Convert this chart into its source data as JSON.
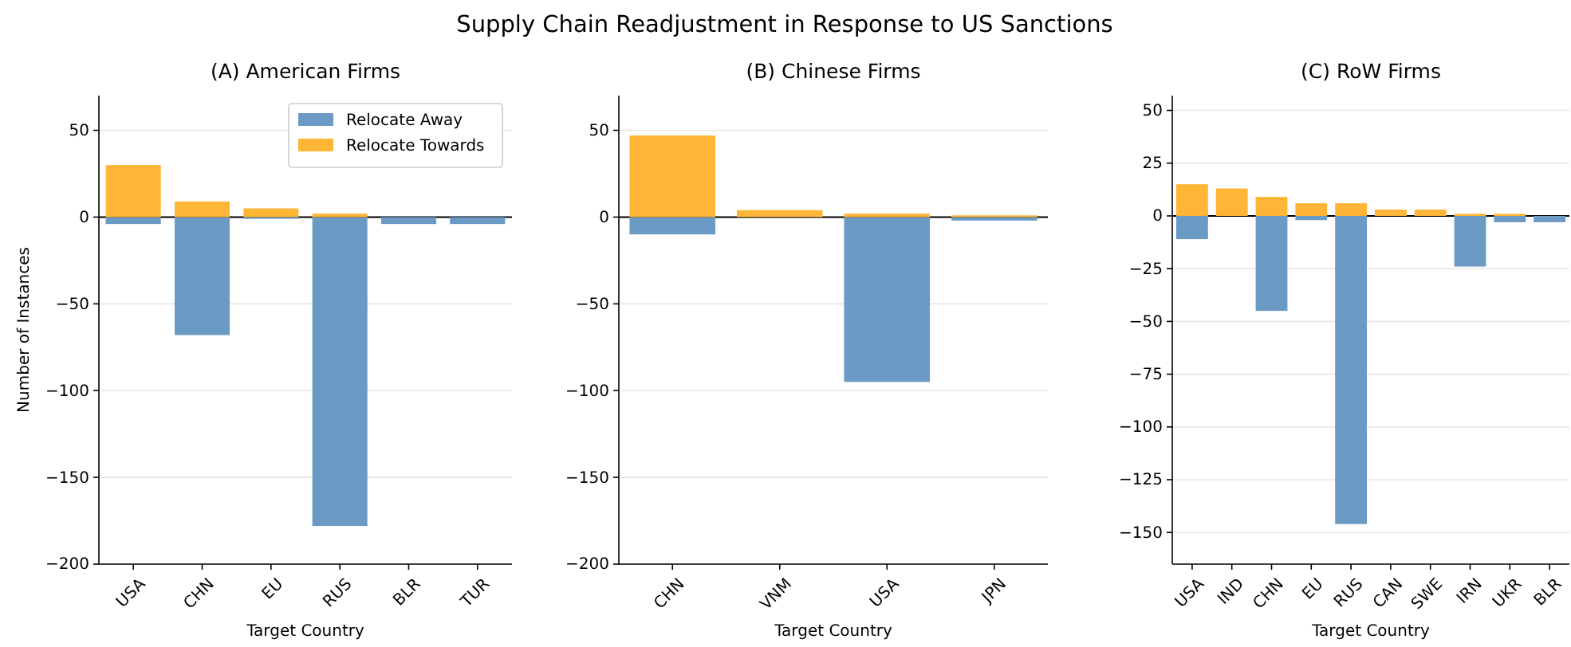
{
  "chart_data": [
    {
      "type": "bar",
      "stacked": true,
      "subtitle": "(A) American Firms",
      "xlabel": "Target Country",
      "ylabel": "Number of Instances",
      "categories": [
        "USA",
        "CHN",
        "EU",
        "RUS",
        "BLR",
        "TUR"
      ],
      "series": [
        {
          "name": "Relocate Away",
          "color": "#6b9bc5",
          "values": [
            -4,
            -68,
            -1,
            -178,
            -4,
            -4
          ]
        },
        {
          "name": "Relocate Towards",
          "color": "#ffb535",
          "values": [
            30,
            9,
            5,
            2,
            0,
            0
          ]
        }
      ],
      "ylim": [
        -200,
        70
      ],
      "yticks": [
        {
          "value": -200,
          "label": "−200"
        },
        {
          "value": -150,
          "label": "−150"
        },
        {
          "value": -100,
          "label": "−100"
        },
        {
          "value": -50,
          "label": "−50"
        },
        0,
        50
      ],
      "grid": "y",
      "legend": "top right",
      "ref_lines": [
        {
          "axis": "y",
          "value": 0,
          "color": "#000000"
        }
      ]
    },
    {
      "type": "bar",
      "stacked": true,
      "title": "Supply Chain Readjustment in Response to US Sanctions",
      "subtitle": "(B) Chinese Firms",
      "xlabel": "Target Country",
      "categories": [
        "CHN",
        "VNM",
        "USA",
        "JPN"
      ],
      "series": [
        {
          "color": "#6b9bc5",
          "values": [
            -10,
            0,
            -95,
            -2
          ]
        },
        {
          "color": "#ffb535",
          "values": [
            47,
            4,
            2,
            1
          ]
        }
      ],
      "ylim": [
        -200,
        70
      ],
      "yticks": [
        {
          "value": -200,
          "label": "−200"
        },
        {
          "value": -150,
          "label": "−150"
        },
        {
          "value": -100,
          "label": "−100"
        },
        {
          "value": -50,
          "label": "−50"
        },
        0,
        50
      ],
      "grid": "y",
      "ref_lines": [
        {
          "axis": "y",
          "value": 0,
          "color": "#000000"
        }
      ]
    },
    {
      "type": "bar",
      "stacked": true,
      "subtitle": "(C) RoW Firms",
      "xlabel": "Target Country",
      "categories": [
        "USA",
        "IND",
        "CHN",
        "EU",
        "RUS",
        "CAN",
        "SWE",
        "IRN",
        "UKR",
        "BLR"
      ],
      "series": [
        {
          "color": "#6b9bc5",
          "values": [
            -11,
            0,
            -45,
            -2,
            -146,
            0,
            0,
            -24,
            -3,
            -3
          ]
        },
        {
          "color": "#ffb535",
          "values": [
            15,
            13,
            9,
            6,
            6,
            3,
            3,
            1,
            1,
            0
          ]
        }
      ],
      "ylim": [
        -165,
        57
      ],
      "yticks": [
        {
          "value": -150,
          "label": "−150"
        },
        {
          "value": -125,
          "label": "−125"
        },
        {
          "value": -100,
          "label": "−100"
        },
        {
          "value": -75,
          "label": "−75"
        },
        {
          "value": -50,
          "label": "−50"
        },
        {
          "value": -25,
          "label": "−25"
        },
        0,
        25,
        50
      ],
      "grid": "y",
      "ref_lines": [
        {
          "axis": "y",
          "value": 0,
          "color": "#000000"
        }
      ]
    }
  ]
}
